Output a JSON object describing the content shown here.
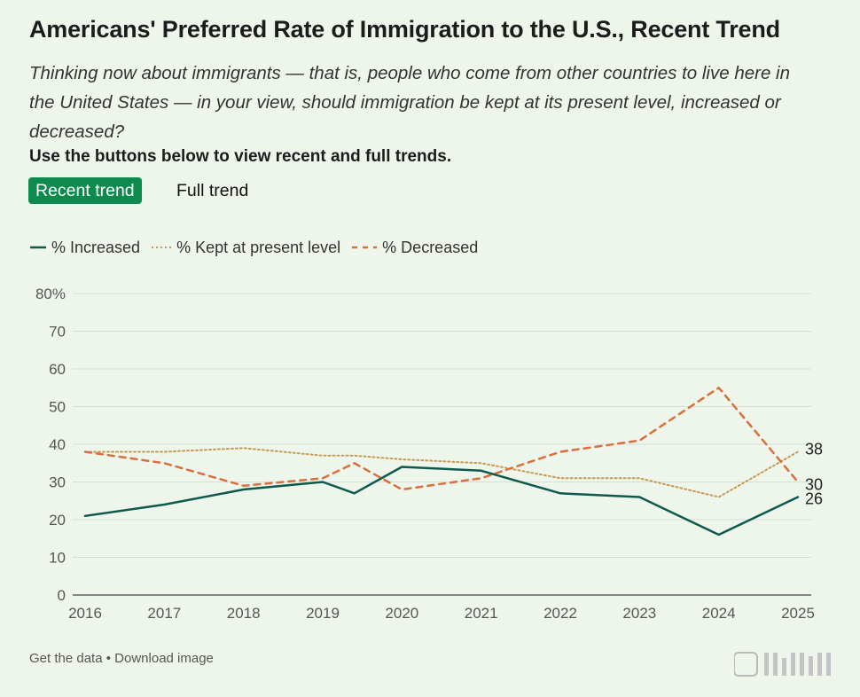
{
  "title": "Americans' Preferred Rate of Immigration to the U.S., Recent Trend",
  "question": "Thinking now about immigrants — that is, people who come from other countries to live here in the United States — in your view, should immigration be kept at its present level, increased or decreased?",
  "instruction": "Use the buttons below to view recent and full trends.",
  "buttons": {
    "recent": "Recent trend",
    "full": "Full trend"
  },
  "footer": {
    "get_data": "Get the data",
    "separator": "•",
    "download": "Download image"
  },
  "colors": {
    "background": "#eef6ec",
    "increased": "#0d5a4c",
    "kept": "#c79a55",
    "decreased": "#d86f3e",
    "button_active": "#0f8a4e",
    "grid": "#d8ddd6",
    "axis_text": "#555555"
  },
  "chart_data": {
    "type": "line",
    "title": "Americans' Preferred Rate of Immigration to the U.S., Recent Trend",
    "xlabel": "",
    "ylabel": "",
    "xlim": [
      2016,
      2025
    ],
    "ylim": [
      0,
      80
    ],
    "grid": true,
    "legend_position": "top-left",
    "x_ticks": [
      2016,
      2017,
      2018,
      2019,
      2020,
      2021,
      2022,
      2023,
      2024,
      2025
    ],
    "y_ticks": [
      0,
      10,
      20,
      30,
      40,
      50,
      60,
      70,
      80
    ],
    "y_tick_labels": [
      "0",
      "10",
      "20",
      "30",
      "40",
      "50",
      "60",
      "70",
      "80%"
    ],
    "series": [
      {
        "name": "% Increased",
        "style": "solid",
        "x": [
          2016,
          2017,
          2018,
          2019,
          2019.4,
          2020,
          2021,
          2022,
          2023,
          2024,
          2025
        ],
        "values": [
          21,
          24,
          28,
          30,
          27,
          34,
          33,
          27,
          26,
          16,
          26
        ],
        "end_label": "26"
      },
      {
        "name": "% Kept at present level",
        "style": "dotted",
        "x": [
          2016,
          2017,
          2018,
          2019,
          2019.4,
          2020,
          2021,
          2022,
          2023,
          2024,
          2025
        ],
        "values": [
          38,
          38,
          39,
          37,
          37,
          36,
          35,
          31,
          31,
          26,
          38
        ],
        "end_label": "38"
      },
      {
        "name": "% Decreased",
        "style": "dashed",
        "x": [
          2016,
          2017,
          2018,
          2019,
          2019.4,
          2020,
          2021,
          2022,
          2023,
          2024,
          2025
        ],
        "values": [
          38,
          35,
          29,
          31,
          35,
          28,
          31,
          38,
          41,
          55,
          30
        ],
        "end_label": "30"
      }
    ]
  }
}
